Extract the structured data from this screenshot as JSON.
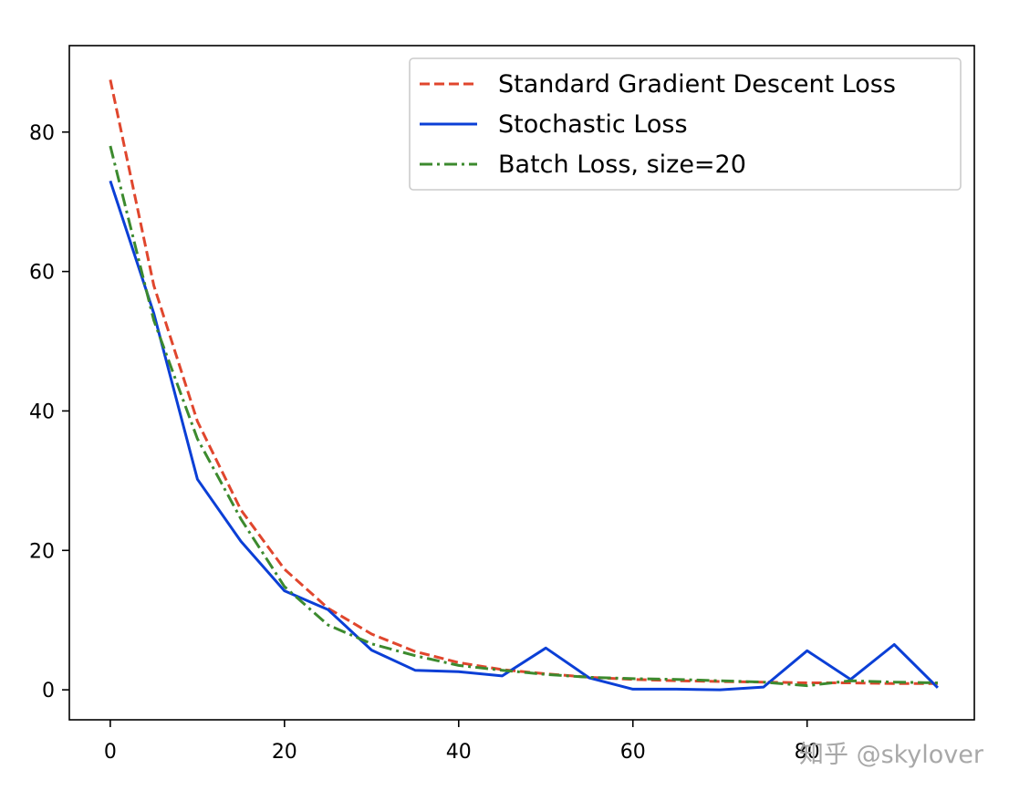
{
  "chart_data": {
    "type": "line",
    "title": "",
    "xlabel": "",
    "ylabel": "",
    "xlim": [
      -4.7,
      99.2
    ],
    "ylim": [
      -4.3,
      92.4
    ],
    "xticks": [
      0,
      20,
      40,
      60,
      80
    ],
    "yticks": [
      0,
      20,
      40,
      60,
      80
    ],
    "grid": false,
    "legend_position": "upper-right",
    "series": [
      {
        "name": "Standard Gradient Descent Loss",
        "color": "#e0462d",
        "style": "dashed",
        "x": [
          0,
          5,
          10,
          15,
          20,
          25,
          30,
          35,
          40,
          45,
          50,
          55,
          60,
          65,
          70,
          75,
          80,
          85,
          90,
          95
        ],
        "y": [
          87.5,
          58.0,
          38.5,
          25.8,
          17.3,
          11.7,
          8.0,
          5.5,
          3.9,
          2.9,
          2.3,
          1.8,
          1.5,
          1.3,
          1.2,
          1.1,
          1.0,
          1.0,
          0.9,
          0.9
        ]
      },
      {
        "name": "Stochastic Loss",
        "color": "#0b3fd6",
        "style": "solid",
        "x": [
          0,
          5,
          10,
          15,
          20,
          25,
          30,
          35,
          40,
          45,
          50,
          55,
          60,
          65,
          70,
          75,
          80,
          85,
          90,
          95
        ],
        "y": [
          73.0,
          54.0,
          30.2,
          21.3,
          14.2,
          11.5,
          5.7,
          2.8,
          2.6,
          2.0,
          6.0,
          1.7,
          0.1,
          0.1,
          0.0,
          0.4,
          5.6,
          1.5,
          6.5,
          0.3
        ]
      },
      {
        "name": "Batch Loss, size=20",
        "color": "#3c8a2e",
        "style": "dashdot",
        "x": [
          0,
          5,
          10,
          15,
          20,
          25,
          30,
          35,
          40,
          45,
          50,
          55,
          60,
          65,
          70,
          75,
          80,
          85,
          90,
          95
        ],
        "y": [
          78.0,
          53.0,
          36.0,
          24.5,
          14.8,
          9.3,
          6.6,
          4.9,
          3.5,
          2.8,
          2.2,
          1.8,
          1.6,
          1.5,
          1.3,
          1.1,
          0.6,
          1.3,
          1.1,
          1.0
        ]
      }
    ]
  },
  "watermark": {
    "text": "知乎 @skylover",
    "color": "#a8a8a8"
  }
}
